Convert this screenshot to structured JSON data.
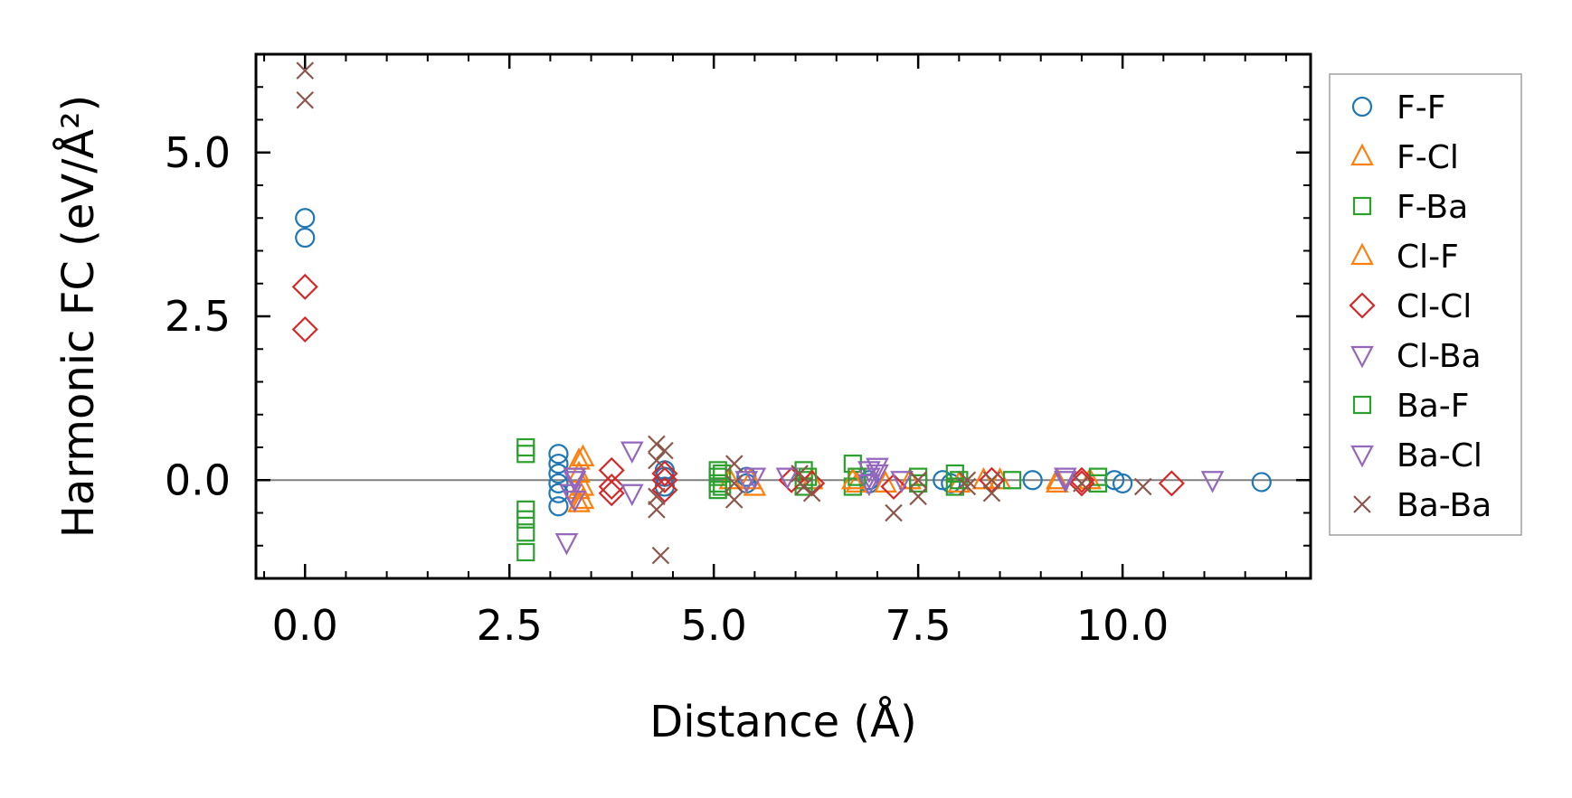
{
  "chart_data": {
    "type": "scatter",
    "title": "",
    "xlabel": "Distance (Å)",
    "ylabel": "Harmonic FC (eV/Å²)",
    "xlim": [
      -0.6,
      12.3
    ],
    "ylim": [
      -1.5,
      6.5
    ],
    "xticks": [
      {
        "value": 0,
        "label": "0.0"
      },
      {
        "value": 2.5,
        "label": "2.5"
      },
      {
        "value": 5,
        "label": "5.0"
      },
      {
        "value": 7.5,
        "label": "7.5"
      },
      {
        "value": 10,
        "label": "10.0"
      }
    ],
    "yticks": [
      {
        "value": 0,
        "label": "0.0"
      },
      {
        "value": 2.5,
        "label": "2.5"
      },
      {
        "value": 5,
        "label": "5.0"
      }
    ],
    "zero_line": true,
    "grid": false,
    "legend_position": "right-outside",
    "series": [
      {
        "name": "F-F",
        "marker": "circle",
        "color": "#1f77b4",
        "points": [
          [
            0,
            4.0
          ],
          [
            0,
            3.7
          ],
          [
            3.1,
            0.4
          ],
          [
            3.1,
            0.25
          ],
          [
            3.1,
            0.1
          ],
          [
            3.1,
            -0.05
          ],
          [
            3.1,
            -0.2
          ],
          [
            3.1,
            -0.4
          ],
          [
            4.4,
            0.15
          ],
          [
            4.4,
            0.05
          ],
          [
            4.4,
            -0.1
          ],
          [
            5.4,
            0.05
          ],
          [
            5.4,
            -0.05
          ],
          [
            6.9,
            0.0
          ],
          [
            6.9,
            -0.05
          ],
          [
            7.8,
            0.0
          ],
          [
            7.9,
            -0.05
          ],
          [
            8.9,
            0.0
          ],
          [
            9.9,
            0.0
          ],
          [
            10.0,
            -0.05
          ],
          [
            11.7,
            -0.03
          ]
        ]
      },
      {
        "name": "F-Cl",
        "marker": "triangle-up",
        "color": "#ff7f0e",
        "points": [
          [
            3.35,
            0.3
          ],
          [
            3.35,
            0.1
          ],
          [
            3.35,
            -0.15
          ],
          [
            3.35,
            -0.35
          ],
          [
            5.2,
            0.0
          ],
          [
            5.5,
            -0.1
          ],
          [
            6.2,
            0.0
          ],
          [
            6.75,
            -0.05
          ],
          [
            7.1,
            -0.05
          ],
          [
            7.4,
            0.0
          ],
          [
            8.0,
            -0.05
          ],
          [
            8.5,
            0.0
          ],
          [
            9.2,
            -0.05
          ],
          [
            9.6,
            0.0
          ]
        ]
      },
      {
        "name": "F-Ba",
        "marker": "square",
        "color": "#2ca02c",
        "points": [
          [
            2.7,
            0.5
          ],
          [
            2.7,
            0.4
          ],
          [
            2.7,
            -0.45
          ],
          [
            2.7,
            -0.6
          ],
          [
            2.7,
            -0.8
          ],
          [
            2.7,
            -1.1
          ],
          [
            5.05,
            0.15
          ],
          [
            5.05,
            0.05
          ],
          [
            5.05,
            -0.05
          ],
          [
            5.05,
            -0.15
          ],
          [
            6.1,
            0.15
          ],
          [
            6.1,
            0.0
          ],
          [
            6.1,
            -0.1
          ],
          [
            6.7,
            0.25
          ],
          [
            6.7,
            -0.1
          ],
          [
            7.5,
            0.05
          ],
          [
            7.5,
            -0.05
          ],
          [
            7.95,
            0.1
          ],
          [
            7.95,
            -0.1
          ],
          [
            8.65,
            0.0
          ],
          [
            9.7,
            0.05
          ],
          [
            9.7,
            -0.05
          ]
        ]
      },
      {
        "name": "Cl-F",
        "marker": "triangle-up",
        "color": "#ff7f0e",
        "points": [
          [
            3.4,
            0.35
          ],
          [
            3.4,
            -0.1
          ],
          [
            3.4,
            -0.3
          ],
          [
            5.45,
            0.0
          ],
          [
            6.7,
            0.0
          ],
          [
            8.3,
            0.0
          ],
          [
            9.2,
            0.0
          ]
        ]
      },
      {
        "name": "Cl-Cl",
        "marker": "diamond",
        "color": "#d62728",
        "points": [
          [
            0,
            2.95
          ],
          [
            0,
            2.3
          ],
          [
            3.75,
            0.15
          ],
          [
            3.75,
            -0.1
          ],
          [
            3.75,
            -0.2
          ],
          [
            4.4,
            0.1
          ],
          [
            4.4,
            0.0
          ],
          [
            4.4,
            -0.15
          ],
          [
            5.95,
            0.0
          ],
          [
            6.2,
            -0.05
          ],
          [
            7.2,
            -0.1
          ],
          [
            8.4,
            0.0
          ],
          [
            9.5,
            0.0
          ],
          [
            9.5,
            -0.05
          ],
          [
            10.6,
            -0.05
          ]
        ]
      },
      {
        "name": "Cl-Ba",
        "marker": "triangle-down",
        "color": "#9467bd",
        "points": [
          [
            3.2,
            -0.95
          ],
          [
            3.25,
            -0.2
          ],
          [
            3.3,
            -0.3
          ],
          [
            3.3,
            0.05
          ],
          [
            4.0,
            0.45
          ],
          [
            4.0,
            -0.2
          ],
          [
            5.4,
            0.0
          ],
          [
            5.9,
            0.05
          ],
          [
            6.9,
            0.15
          ],
          [
            6.9,
            0.05
          ],
          [
            7.0,
            0.1
          ],
          [
            7.3,
            0.0
          ],
          [
            9.3,
            0.05
          ],
          [
            11.1,
            0.0
          ]
        ]
      },
      {
        "name": "Ba-F",
        "marker": "square",
        "color": "#2ca02c",
        "points": [
          [
            5.1,
            0.1
          ],
          [
            5.1,
            -0.1
          ],
          [
            6.15,
            0.05
          ],
          [
            6.75,
            0.05
          ],
          [
            8.0,
            0.0
          ]
        ]
      },
      {
        "name": "Ba-Cl",
        "marker": "triangle-down",
        "color": "#9467bd",
        "points": [
          [
            3.3,
            0.0
          ],
          [
            5.5,
            0.05
          ],
          [
            6.9,
            -0.05
          ],
          [
            7.0,
            0.2
          ],
          [
            9.3,
            0.0
          ]
        ]
      },
      {
        "name": "Ba-Ba",
        "marker": "x",
        "color": "#8c564b",
        "points": [
          [
            0,
            6.25
          ],
          [
            0,
            5.8
          ],
          [
            4.3,
            0.55
          ],
          [
            4.3,
            0.3
          ],
          [
            4.3,
            -0.25
          ],
          [
            4.3,
            -0.45
          ],
          [
            4.35,
            -1.15
          ],
          [
            4.4,
            0.45
          ],
          [
            5.25,
            0.25
          ],
          [
            5.25,
            -0.05
          ],
          [
            5.25,
            -0.3
          ],
          [
            6.05,
            0.1
          ],
          [
            6.1,
            -0.1
          ],
          [
            6.2,
            -0.2
          ],
          [
            7.2,
            -0.5
          ],
          [
            7.5,
            -0.25
          ],
          [
            7.5,
            0.0
          ],
          [
            8.1,
            -0.1
          ],
          [
            8.1,
            0.0
          ],
          [
            8.4,
            -0.2
          ],
          [
            8.4,
            0.0
          ],
          [
            9.5,
            -0.05
          ],
          [
            10.25,
            -0.1
          ]
        ]
      }
    ]
  }
}
